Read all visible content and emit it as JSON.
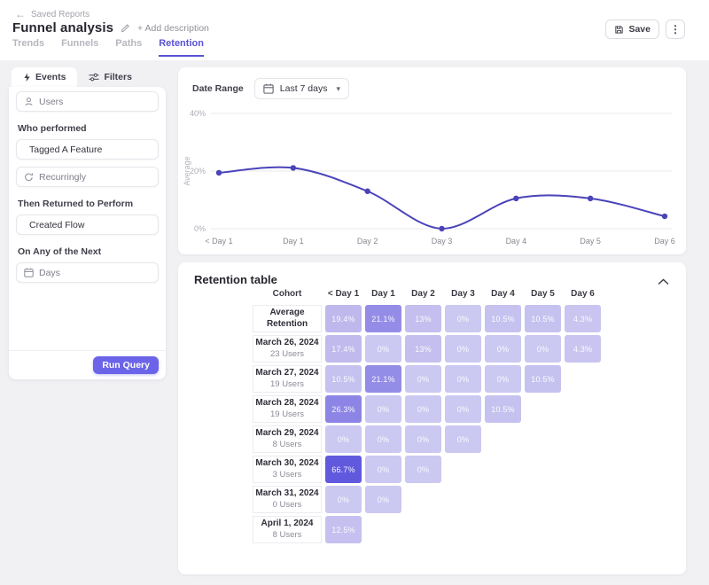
{
  "header": {
    "back_label": "Saved Reports",
    "title": "Funnel analysis",
    "add_description": "+ Add description",
    "save_label": "Save",
    "tabs": [
      {
        "label": "Trends",
        "active": false
      },
      {
        "label": "Funnels",
        "active": false
      },
      {
        "label": "Paths",
        "active": false
      },
      {
        "label": "Retention",
        "active": true
      }
    ]
  },
  "query_panel": {
    "tabs": [
      {
        "label": "Events",
        "icon": "bolt-icon",
        "active": true
      },
      {
        "label": "Filters",
        "icon": "sliders-icon",
        "active": false
      }
    ],
    "users_value": "Users",
    "who_performed_label": "Who performed",
    "performed_event": "Tagged A Feature",
    "recurrence_value": "Recurringly",
    "returned_label": "Then Returned to Perform",
    "returned_event": "Created Flow",
    "window_label": "On Any of the Next",
    "window_unit": "Days",
    "run_query_label": "Run Query"
  },
  "chart_section": {
    "date_range_label": "Date Range",
    "date_range_value": "Last 7 days"
  },
  "chart_data": {
    "type": "line",
    "x": [
      "< Day 1",
      "Day 1",
      "Day 2",
      "Day 3",
      "Day 4",
      "Day 5",
      "Day 6"
    ],
    "series": [
      {
        "name": "Average Retention",
        "values": [
          19.4,
          21.1,
          13,
          0,
          10.5,
          10.5,
          4.3
        ]
      }
    ],
    "ylabel": "Average",
    "yticks": [
      {
        "label": "0%",
        "value": 0
      },
      {
        "label": "20%",
        "value": 20
      },
      {
        "label": "40%",
        "value": 40
      }
    ],
    "ylim": [
      0,
      40
    ],
    "grid": true,
    "legend": false,
    "line_color": "#4a43b9"
  },
  "retention_table": {
    "title": "Retention table",
    "columns": [
      "Cohort",
      "< Day 1",
      "Day 1",
      "Day 2",
      "Day 3",
      "Day 4",
      "Day 5",
      "Day 6"
    ],
    "rows": [
      {
        "label": "Average Retention",
        "sublabel": "",
        "cells": [
          {
            "v": "19.4%",
            "c": "#beb8ed"
          },
          {
            "v": "21.1%",
            "c": "#938de7"
          },
          {
            "v": "13%",
            "c": "#c4bfee"
          },
          {
            "v": "0%",
            "c": "#cbc8f1"
          },
          {
            "v": "10.5%",
            "c": "#c6c2ef"
          },
          {
            "v": "10.5%",
            "c": "#c6c2ef"
          },
          {
            "v": "4.3%",
            "c": "#c9c5f0"
          }
        ]
      },
      {
        "label": "March 26, 2024",
        "sublabel": "23 Users",
        "cells": [
          {
            "v": "17.4%",
            "c": "#c0baed"
          },
          {
            "v": "0%",
            "c": "#cbc8f1"
          },
          {
            "v": "13%",
            "c": "#c4bfee"
          },
          {
            "v": "0%",
            "c": "#cbc8f1"
          },
          {
            "v": "0%",
            "c": "#cbc8f1"
          },
          {
            "v": "0%",
            "c": "#cbc8f1"
          },
          {
            "v": "4.3%",
            "c": "#c9c5f0"
          }
        ]
      },
      {
        "label": "March 27, 2024",
        "sublabel": "19 Users",
        "cells": [
          {
            "v": "10.5%",
            "c": "#c6c2ef"
          },
          {
            "v": "21.1%",
            "c": "#938de7"
          },
          {
            "v": "0%",
            "c": "#cbc8f1"
          },
          {
            "v": "0%",
            "c": "#cbc8f1"
          },
          {
            "v": "0%",
            "c": "#cbc8f1"
          },
          {
            "v": "10.5%",
            "c": "#c6c2ef"
          }
        ]
      },
      {
        "label": "March 28, 2024",
        "sublabel": "19 Users",
        "cells": [
          {
            "v": "26.3%",
            "c": "#8c85e5"
          },
          {
            "v": "0%",
            "c": "#cbc8f1"
          },
          {
            "v": "0%",
            "c": "#cbc8f1"
          },
          {
            "v": "0%",
            "c": "#cbc8f1"
          },
          {
            "v": "10.5%",
            "c": "#c6c2ef"
          }
        ]
      },
      {
        "label": "March 29, 2024",
        "sublabel": "8 Users",
        "cells": [
          {
            "v": "0%",
            "c": "#cbc8f1"
          },
          {
            "v": "0%",
            "c": "#cbc8f1"
          },
          {
            "v": "0%",
            "c": "#cbc8f1"
          },
          {
            "v": "0%",
            "c": "#cbc8f1"
          }
        ]
      },
      {
        "label": "March 30, 2024",
        "sublabel": "3 Users",
        "cells": [
          {
            "v": "66.7%",
            "c": "#6159dd"
          },
          {
            "v": "0%",
            "c": "#cbc8f1"
          },
          {
            "v": "0%",
            "c": "#cbc8f1"
          }
        ]
      },
      {
        "label": "March 31, 2024",
        "sublabel": "0 Users",
        "cells": [
          {
            "v": "0%",
            "c": "#cbc8f1"
          },
          {
            "v": "0%",
            "c": "#cbc8f1"
          }
        ]
      },
      {
        "label": "April 1, 2024",
        "sublabel": "8 Users",
        "cells": [
          {
            "v": "12.5%",
            "c": "#c5c0ef"
          }
        ]
      }
    ]
  },
  "colors": {
    "accent": "#5952d5",
    "run_button": "#6b64e8",
    "chart_line": "#4a43b9",
    "page_bg": "#f1f1f4",
    "cell_max": "#6159dd",
    "cell_min": "#cbc8f1"
  }
}
